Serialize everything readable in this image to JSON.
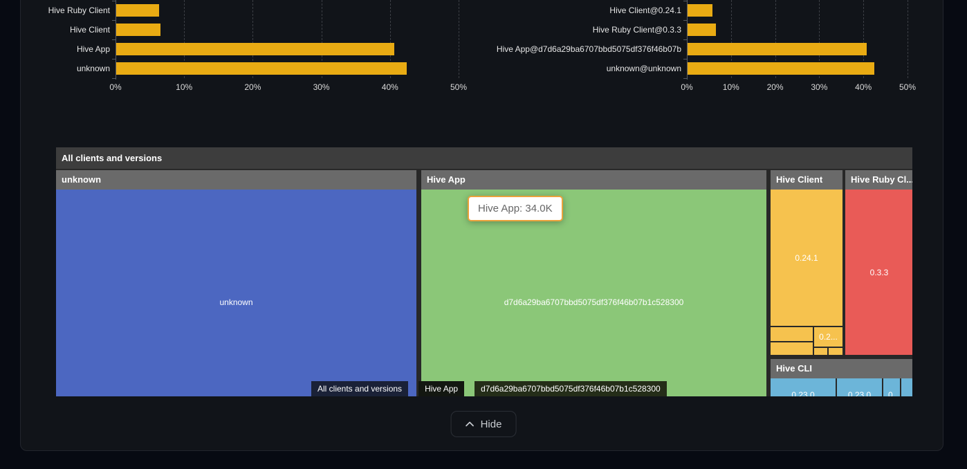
{
  "chart_data": [
    {
      "type": "bar",
      "orientation": "horizontal",
      "categories": [
        "Hive Ruby Client",
        "Hive Client",
        "Hive App",
        "unknown"
      ],
      "values": [
        6.2,
        6.5,
        40.5,
        42.3
      ],
      "unit": "%",
      "xlim": [
        0,
        50
      ],
      "x_tick_labels": [
        "0%",
        "10%",
        "20%",
        "30%",
        "40%",
        "50%"
      ],
      "grid": "dashed-vertical",
      "bar_color": "#e9ab13",
      "title": ""
    },
    {
      "type": "bar",
      "orientation": "horizontal",
      "categories": [
        "Hive Client@0.24.1",
        "Hive Ruby Client@0.3.3",
        "Hive App@d7d6a29ba6707bbd5075df376f46b07b",
        "unknown@unknown"
      ],
      "values": [
        5.6,
        6.4,
        40.6,
        42.3
      ],
      "unit": "%",
      "xlim": [
        0,
        50
      ],
      "x_tick_labels": [
        "0%",
        "10%",
        "20%",
        "30%",
        "40%",
        "50%"
      ],
      "grid": "dashed-vertical",
      "bar_color": "#e9ab13",
      "title": ""
    },
    {
      "type": "treemap",
      "title": "All clients and versions",
      "nodes": [
        {
          "name": "unknown",
          "color": "#4c67c1",
          "children": [
            {
              "name": "unknown"
            }
          ]
        },
        {
          "name": "Hive App",
          "color": "#8bc778",
          "tooltip_value": "34.0K",
          "children": [
            {
              "name": "d7d6a29ba6707bbd5075df376f46b07b1c528300"
            }
          ]
        },
        {
          "name": "Hive Client",
          "color": "#f6c24e",
          "children": [
            {
              "name": "0.24.1"
            },
            {
              "name": "0.2..."
            }
          ]
        },
        {
          "name": "Hive Ruby Cl...",
          "color": "#e95b57",
          "children": [
            {
              "name": "0.3.3"
            }
          ]
        },
        {
          "name": "Hive CLI",
          "color": "#6cb5d9",
          "children": [
            {
              "name": "0.23.0"
            },
            {
              "name": "0.23.0"
            },
            {
              "name": "0."
            }
          ]
        }
      ]
    }
  ],
  "treemap_ui": {
    "title": "All clients and versions",
    "sections": {
      "unknown": {
        "header": "unknown",
        "color": "#4c67c1",
        "body_label": "unknown"
      },
      "hive_app": {
        "header": "Hive App",
        "color": "#8bc778",
        "body_label": "d7d6a29ba6707bbd5075df376f46b07b1c528300"
      },
      "hive_client": {
        "header": "Hive Client",
        "color": "#f6c24e",
        "boxes": {
          "main": "0.24.1",
          "small": "0.2..."
        }
      },
      "hive_ruby": {
        "header": "Hive Ruby Cl...",
        "color": "#e95b57",
        "body_label": "0.3.3"
      },
      "hive_cli": {
        "header": "Hive CLI",
        "color": "#6cb5d9",
        "boxes": [
          "0.23.0",
          "0.23.0",
          "0.",
          ""
        ]
      }
    },
    "breadcrumb": {
      "items": [
        "All clients and versions",
        "Hive App",
        "d7d6a29ba6707bbd5075df376f46b07b1c528300"
      ],
      "chevron": "❯",
      "chevron_colors": [
        "#4c67c1",
        "#8bc778"
      ],
      "segment_bg": [
        "#1a2137",
        "#131711",
        "#242d18"
      ]
    },
    "tooltip": {
      "text": "Hive App: 34.0K",
      "border_color": "#eba23c"
    }
  },
  "footer": {
    "hide_label": "Hide"
  },
  "colors": {
    "page_bg": "#070a12",
    "panel_bg": "#111419",
    "treemap_title_bg": "#3d3d3d",
    "treemap_header_bg": "#6a6a6a",
    "bar_gold": "#e9ab13"
  }
}
